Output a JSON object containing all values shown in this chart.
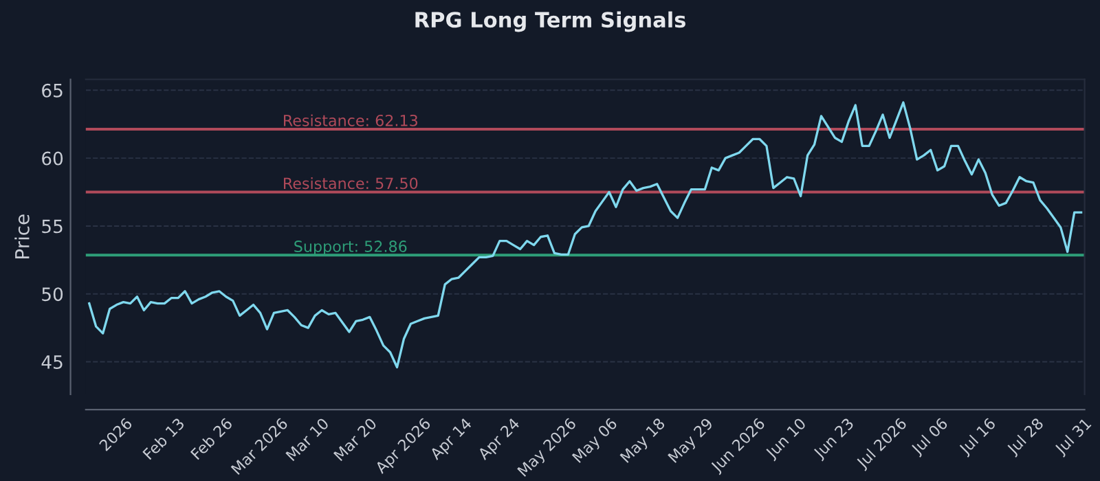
{
  "chart_data": {
    "type": "line",
    "title": "RPG Long Term Signals",
    "ylabel": "Price",
    "categories": [
      null,
      null,
      null,
      null,
      "2026",
      null,
      null,
      null,
      null,
      null,
      null,
      "Feb 13",
      null,
      null,
      null,
      null,
      null,
      null,
      "Feb 26",
      null,
      null,
      null,
      null,
      null,
      null,
      "Mar 2026",
      null,
      null,
      null,
      null,
      null,
      null,
      "Mar 10",
      null,
      null,
      null,
      null,
      null,
      null,
      "Mar 20",
      null,
      null,
      null,
      null,
      null,
      null,
      "Apr 2026",
      null,
      null,
      null,
      null,
      null,
      null,
      "Apr 14",
      null,
      null,
      null,
      null,
      null,
      null,
      "Apr 24",
      null,
      null,
      null,
      null,
      null,
      null,
      "May 2026",
      null,
      null,
      null,
      null,
      null,
      null,
      "May 06",
      null,
      null,
      null,
      null,
      null,
      null,
      "May 18",
      null,
      null,
      null,
      null,
      null,
      null,
      "May 29",
      null,
      null,
      null,
      null,
      null,
      null,
      "Jun 2026",
      null,
      null,
      null,
      null,
      null,
      null,
      "Jun 10",
      null,
      null,
      null,
      null,
      null,
      null,
      "Jun 23",
      null,
      null,
      null,
      null,
      null,
      null,
      "Jul 2026",
      null,
      null,
      null,
      null,
      null,
      null,
      "Jul 06",
      null,
      null,
      null,
      null,
      null,
      null,
      "Jul 16",
      null,
      null,
      null,
      null,
      null,
      null,
      "Jul 28",
      null,
      null,
      null,
      null,
      null,
      null,
      "Jul 31",
      null
    ],
    "series": [
      {
        "color": "#7fd8ee",
        "values": [
          49.3,
          47.6,
          47.1,
          48.9,
          49.2,
          49.4,
          49.3,
          49.8,
          48.8,
          49.4,
          49.3,
          49.3,
          49.7,
          49.7,
          50.2,
          49.3,
          49.6,
          49.8,
          50.1,
          50.2,
          49.8,
          49.5,
          48.4,
          48.8,
          49.2,
          48.6,
          47.4,
          48.6,
          48.7,
          48.8,
          48.3,
          47.7,
          47.5,
          48.4,
          48.8,
          48.5,
          48.6,
          47.9,
          47.2,
          48.0,
          48.1,
          48.3,
          47.3,
          46.2,
          45.7,
          44.6,
          46.7,
          47.8,
          48.0,
          48.2,
          48.3,
          48.4,
          50.7,
          51.1,
          51.2,
          51.7,
          52.2,
          52.7,
          52.7,
          52.8,
          53.9,
          53.9,
          53.6,
          53.3,
          53.9,
          53.6,
          54.2,
          54.3,
          53.0,
          52.9,
          52.9,
          54.4,
          54.9,
          55.0,
          56.1,
          56.8,
          57.5,
          56.4,
          57.7,
          58.3,
          57.6,
          57.8,
          57.9,
          58.1,
          57.1,
          56.1,
          55.6,
          56.7,
          57.7,
          57.7,
          57.7,
          59.3,
          59.1,
          60.0,
          60.2,
          60.4,
          60.9,
          61.4,
          61.4,
          60.9,
          57.8,
          58.2,
          58.6,
          58.5,
          57.2,
          60.2,
          61.0,
          63.1,
          62.3,
          61.5,
          61.2,
          62.7,
          63.9,
          60.9,
          60.9,
          62.0,
          63.2,
          61.5,
          62.8,
          64.1,
          62.2,
          59.9,
          60.2,
          60.6,
          59.1,
          59.4,
          60.9,
          60.9,
          59.8,
          58.8,
          59.9,
          58.9,
          57.3,
          56.5,
          56.7,
          57.6,
          58.6,
          58.3,
          58.2,
          56.9,
          56.3,
          55.6,
          54.9,
          53.1,
          56.0,
          56.0
        ]
      }
    ],
    "ylim": [
      42.6,
      65.8
    ],
    "yticks": [
      45,
      50,
      55,
      60,
      65
    ],
    "grid": "y",
    "ref_lines": [
      {
        "axis": "y",
        "value": 62.13,
        "label": "Resistance: 62.13",
        "color": "#b04a5a"
      },
      {
        "axis": "y",
        "value": 57.5,
        "label": "Resistance: 57.50",
        "color": "#b04a5a"
      },
      {
        "axis": "y",
        "value": 52.86,
        "label": "Support: 52.86",
        "color": "#2e9e78"
      }
    ]
  }
}
